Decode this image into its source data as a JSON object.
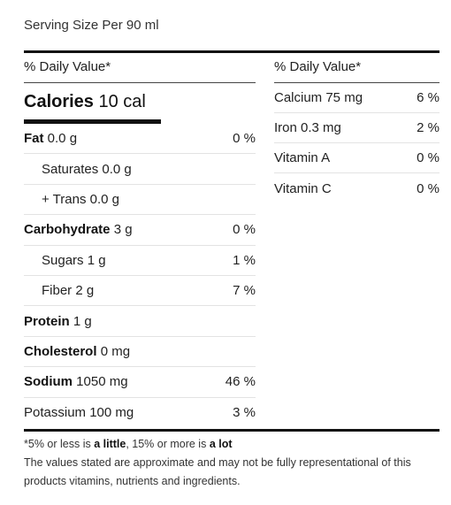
{
  "serving_size": "Serving Size Per 90 ml",
  "left": {
    "dv_header": "% Daily Value*",
    "calories_label": "Calories",
    "calories_value": "10 cal",
    "rows": [
      {
        "name_bold": "Fat",
        "amount": "0.0 g",
        "pct": "0 %"
      },
      {
        "name": "Saturates 0.0 g",
        "pct": ""
      },
      {
        "name": "+ Trans 0.0 g",
        "pct": ""
      },
      {
        "name_bold": "Carbohydrate",
        "amount": "3 g",
        "pct": "0 %"
      },
      {
        "name": "Sugars 1 g",
        "pct": "1 %"
      },
      {
        "name": "Fiber 2 g",
        "pct": "7 %"
      },
      {
        "name_bold": "Protein",
        "amount": "1 g",
        "pct": ""
      },
      {
        "name_bold": "Cholesterol",
        "amount": "0 mg",
        "pct": ""
      },
      {
        "name_bold": "Sodium",
        "amount": "1050 mg",
        "pct": "46 %"
      },
      {
        "name": "Potassium 100 mg",
        "pct": "3 %"
      }
    ]
  },
  "right": {
    "dv_header": "% Daily Value*",
    "rows": [
      {
        "name": "Calcium 75 mg",
        "pct": "6 %"
      },
      {
        "name": "Iron 0.3 mg",
        "pct": "2 %"
      },
      {
        "name": "Vitamin A",
        "pct": "0 %"
      },
      {
        "name": "Vitamin C",
        "pct": "0 %"
      }
    ]
  },
  "footnote": {
    "part1": "*5% or less is ",
    "little": "a little",
    "part2": ", 15% or more is ",
    "lot": "a lot",
    "disclaimer": "The values stated are approximate and may not be fully representational of this products vitamins, nutrients and ingredients."
  }
}
